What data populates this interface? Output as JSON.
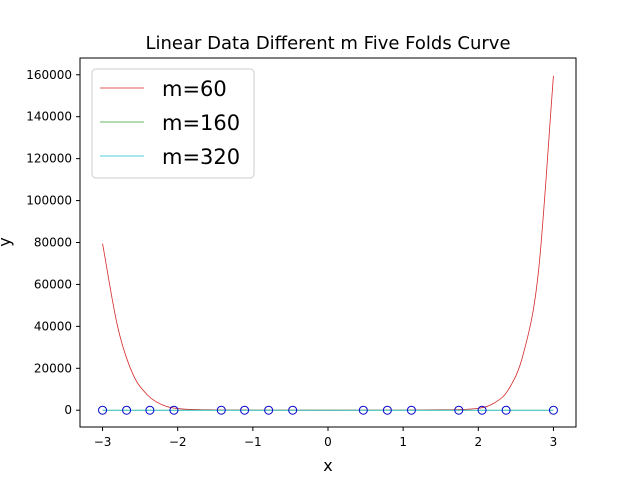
{
  "chart_data": {
    "type": "line",
    "title": "Linear Data Different m Five Folds Curve",
    "xlabel": "x",
    "ylabel": "y",
    "xlim": [
      -3.3,
      3.3
    ],
    "ylim": [
      -8000,
      168000
    ],
    "xticks": [
      -3,
      -2,
      -1,
      0,
      1,
      2,
      3
    ],
    "xtick_labels": [
      "−3",
      "−2",
      "−1",
      "0",
      "1",
      "2",
      "3"
    ],
    "yticks": [
      0,
      20000,
      40000,
      60000,
      80000,
      100000,
      120000,
      140000,
      160000
    ],
    "ytick_labels": [
      "0",
      "20000",
      "40000",
      "60000",
      "80000",
      "100000",
      "120000",
      "140000",
      "160000"
    ],
    "grid": false,
    "legend_position": "top-left",
    "series": [
      {
        "name": "m=60",
        "color": "#d62728",
        "x": [
          -3.0,
          -2.8,
          -2.6,
          -2.4,
          -2.2,
          -2.0,
          -1.5,
          -1.0,
          0.0,
          1.0,
          1.5,
          2.0,
          2.2,
          2.4,
          2.6,
          2.8,
          3.0
        ],
        "y": [
          79500,
          40000,
          17500,
          7200,
          2500,
          800,
          150,
          60,
          20,
          60,
          200,
          900,
          3200,
          9800,
          27000,
          66000,
          159500
        ]
      },
      {
        "name": "m=160",
        "color": "#2ca02c",
        "x": [
          -3.0,
          -2.0,
          -1.0,
          0.0,
          1.0,
          2.0,
          3.0
        ],
        "y": [
          0,
          0,
          0,
          0,
          0,
          0,
          0
        ]
      },
      {
        "name": "m=320",
        "color": "#17becf",
        "x": [
          -3.0,
          -2.0,
          -1.0,
          0.0,
          1.0,
          2.0,
          3.0
        ],
        "y": [
          0,
          0,
          0,
          0,
          0,
          0,
          0
        ]
      }
    ],
    "points": {
      "color": "#0000cc",
      "x": [
        -3.0,
        -2.68,
        -2.37,
        -2.05,
        -1.42,
        -1.11,
        -0.79,
        -0.47,
        0.47,
        0.79,
        1.11,
        1.74,
        2.05,
        2.37,
        3.0
      ],
      "y": [
        0,
        0,
        0,
        0,
        0,
        0,
        0,
        0,
        0,
        0,
        0,
        0,
        0,
        0,
        0
      ]
    }
  }
}
